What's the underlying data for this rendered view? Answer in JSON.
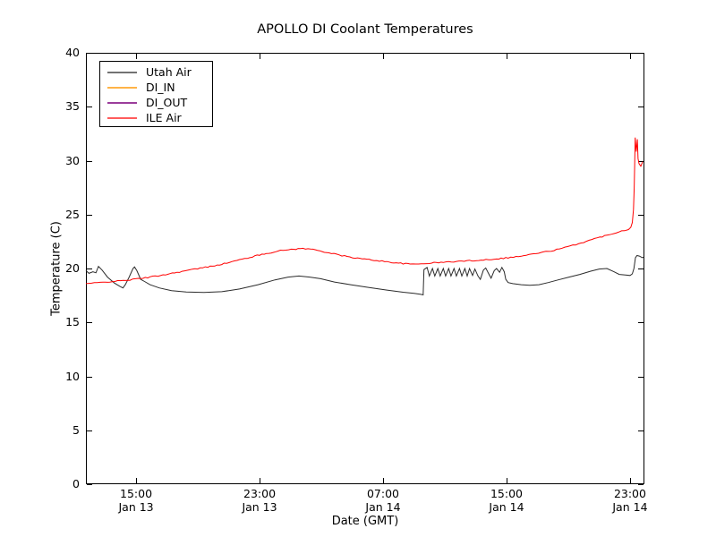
{
  "figure": {
    "background": "#ffffff",
    "title": "APOLLO DI Coolant Temperatures",
    "xlabel": "Date (GMT)",
    "ylabel": "Temperature (C)",
    "axis_color": "#000000",
    "legend": {
      "position": "upper left",
      "items": [
        {
          "label": "Utah Air",
          "color": "#737373"
        },
        {
          "label": "DI_IN",
          "color": "#ffb347"
        },
        {
          "label": "DI_OUT",
          "color": "#9b3d9b"
        },
        {
          "label": "ILE Air",
          "color": "#ff5c5c"
        }
      ]
    }
  },
  "chart_data": {
    "type": "line",
    "title": "APOLLO DI Coolant Temperatures",
    "xlabel": "Date (GMT)",
    "ylabel": "Temperature (C)",
    "x_unit_note": "hours since Jan 13 00:00 GMT",
    "xlim": [
      11.75,
      47.93
    ],
    "ylim": [
      0,
      40
    ],
    "grid": false,
    "legend_position": "upper left",
    "x_ticks": [
      {
        "hour": 15,
        "time": "15:00",
        "date": "Jan 13"
      },
      {
        "hour": 23,
        "time": "23:00",
        "date": "Jan 13"
      },
      {
        "hour": 31,
        "time": "07:00",
        "date": "Jan 14"
      },
      {
        "hour": 39,
        "time": "15:00",
        "date": "Jan 14"
      },
      {
        "hour": 47,
        "time": "23:00",
        "date": "Jan 14"
      }
    ],
    "y_ticks": [
      0,
      5,
      10,
      15,
      20,
      25,
      30,
      35,
      40
    ],
    "series": [
      {
        "name": "Utah Air",
        "color": "#2b2b2b",
        "points": [
          [
            11.75,
            19.8
          ],
          [
            11.95,
            19.55
          ],
          [
            12.2,
            19.7
          ],
          [
            12.4,
            19.6
          ],
          [
            12.56,
            20.2
          ],
          [
            12.8,
            19.85
          ],
          [
            13.15,
            19.2
          ],
          [
            13.6,
            18.65
          ],
          [
            13.95,
            18.35
          ],
          [
            14.15,
            18.2
          ],
          [
            14.3,
            18.5
          ],
          [
            14.55,
            19.2
          ],
          [
            14.8,
            20.0
          ],
          [
            14.9,
            20.15
          ],
          [
            15.05,
            19.8
          ],
          [
            15.3,
            19.0
          ],
          [
            15.55,
            18.8
          ],
          [
            15.9,
            18.5
          ],
          [
            16.5,
            18.2
          ],
          [
            17.3,
            17.95
          ],
          [
            18.25,
            17.82
          ],
          [
            19.4,
            17.78
          ],
          [
            20.55,
            17.85
          ],
          [
            21.7,
            18.1
          ],
          [
            22.9,
            18.5
          ],
          [
            24.0,
            18.95
          ],
          [
            24.85,
            19.2
          ],
          [
            25.55,
            19.3
          ],
          [
            26.25,
            19.2
          ],
          [
            26.95,
            19.05
          ],
          [
            27.85,
            18.75
          ],
          [
            28.9,
            18.5
          ],
          [
            30.05,
            18.25
          ],
          [
            31.25,
            18.0
          ],
          [
            32.3,
            17.8
          ],
          [
            33.0,
            17.7
          ],
          [
            33.45,
            17.6
          ],
          [
            33.6,
            17.55
          ],
          [
            33.65,
            19.9
          ],
          [
            33.85,
            20.1
          ],
          [
            34.0,
            19.3
          ],
          [
            34.2,
            20.0
          ],
          [
            34.35,
            19.3
          ],
          [
            34.55,
            20.0
          ],
          [
            34.7,
            19.3
          ],
          [
            34.9,
            20.0
          ],
          [
            35.05,
            19.3
          ],
          [
            35.25,
            20.0
          ],
          [
            35.4,
            19.3
          ],
          [
            35.6,
            20.0
          ],
          [
            35.75,
            19.3
          ],
          [
            35.95,
            20.0
          ],
          [
            36.1,
            19.3
          ],
          [
            36.3,
            20.0
          ],
          [
            36.45,
            19.3
          ],
          [
            36.6,
            20.0
          ],
          [
            36.8,
            19.35
          ],
          [
            36.95,
            19.95
          ],
          [
            37.15,
            19.3
          ],
          [
            37.3,
            19.0
          ],
          [
            37.5,
            19.85
          ],
          [
            37.65,
            20.05
          ],
          [
            37.85,
            19.5
          ],
          [
            38.0,
            19.1
          ],
          [
            38.2,
            19.8
          ],
          [
            38.35,
            20.0
          ],
          [
            38.55,
            19.65
          ],
          [
            38.7,
            20.1
          ],
          [
            38.85,
            19.7
          ],
          [
            38.95,
            19.0
          ],
          [
            39.1,
            18.7
          ],
          [
            39.4,
            18.6
          ],
          [
            39.95,
            18.5
          ],
          [
            40.5,
            18.45
          ],
          [
            41.1,
            18.5
          ],
          [
            41.7,
            18.7
          ],
          [
            42.35,
            18.95
          ],
          [
            43.05,
            19.2
          ],
          [
            43.75,
            19.45
          ],
          [
            44.45,
            19.75
          ],
          [
            45.0,
            19.95
          ],
          [
            45.5,
            20.0
          ],
          [
            45.95,
            19.7
          ],
          [
            46.3,
            19.45
          ],
          [
            46.7,
            19.4
          ],
          [
            47.0,
            19.35
          ],
          [
            47.15,
            19.5
          ],
          [
            47.25,
            20.0
          ],
          [
            47.35,
            21.0
          ],
          [
            47.45,
            21.2
          ],
          [
            47.6,
            21.15
          ],
          [
            47.8,
            21.0
          ],
          [
            47.87,
            21.05
          ]
        ]
      },
      {
        "name": "DI_IN",
        "color": "#ffa500",
        "points": []
      },
      {
        "name": "DI_OUT",
        "color": "#800080",
        "points": []
      },
      {
        "name": "ILE Air",
        "color": "#ff0000",
        "jitter": 0.055,
        "points": [
          [
            11.75,
            18.6
          ],
          [
            12.3,
            18.65
          ],
          [
            12.85,
            18.72
          ],
          [
            13.45,
            18.8
          ],
          [
            14.0,
            18.85
          ],
          [
            14.6,
            18.95
          ],
          [
            15.15,
            19.05
          ],
          [
            15.9,
            19.2
          ],
          [
            16.75,
            19.4
          ],
          [
            17.65,
            19.65
          ],
          [
            18.65,
            19.9
          ],
          [
            19.65,
            20.15
          ],
          [
            20.7,
            20.45
          ],
          [
            21.7,
            20.8
          ],
          [
            22.7,
            21.15
          ],
          [
            23.6,
            21.45
          ],
          [
            24.35,
            21.65
          ],
          [
            25.05,
            21.78
          ],
          [
            25.65,
            21.85
          ],
          [
            26.3,
            21.8
          ],
          [
            26.9,
            21.65
          ],
          [
            27.65,
            21.4
          ],
          [
            28.5,
            21.15
          ],
          [
            29.35,
            20.95
          ],
          [
            30.25,
            20.8
          ],
          [
            31.1,
            20.65
          ],
          [
            32.0,
            20.5
          ],
          [
            32.75,
            20.4
          ],
          [
            33.3,
            20.42
          ],
          [
            34.0,
            20.5
          ],
          [
            34.9,
            20.58
          ],
          [
            35.75,
            20.65
          ],
          [
            36.6,
            20.72
          ],
          [
            37.5,
            20.8
          ],
          [
            38.35,
            20.9
          ],
          [
            39.1,
            21.0
          ],
          [
            39.95,
            21.15
          ],
          [
            40.75,
            21.35
          ],
          [
            41.55,
            21.55
          ],
          [
            42.25,
            21.75
          ],
          [
            42.95,
            22.0
          ],
          [
            43.65,
            22.3
          ],
          [
            44.35,
            22.6
          ],
          [
            45.05,
            22.9
          ],
          [
            45.65,
            23.15
          ],
          [
            46.25,
            23.4
          ],
          [
            46.65,
            23.55
          ],
          [
            46.9,
            23.65
          ],
          [
            47.05,
            23.8
          ],
          [
            47.15,
            24.3
          ],
          [
            47.22,
            25.5
          ],
          [
            47.27,
            27.5
          ],
          [
            47.3,
            29.5
          ],
          [
            47.33,
            32.1
          ],
          [
            47.4,
            30.8
          ],
          [
            47.47,
            32.0
          ],
          [
            47.52,
            30.2
          ],
          [
            47.58,
            29.7
          ],
          [
            47.7,
            29.5
          ],
          [
            47.82,
            29.9
          ]
        ]
      }
    ]
  }
}
